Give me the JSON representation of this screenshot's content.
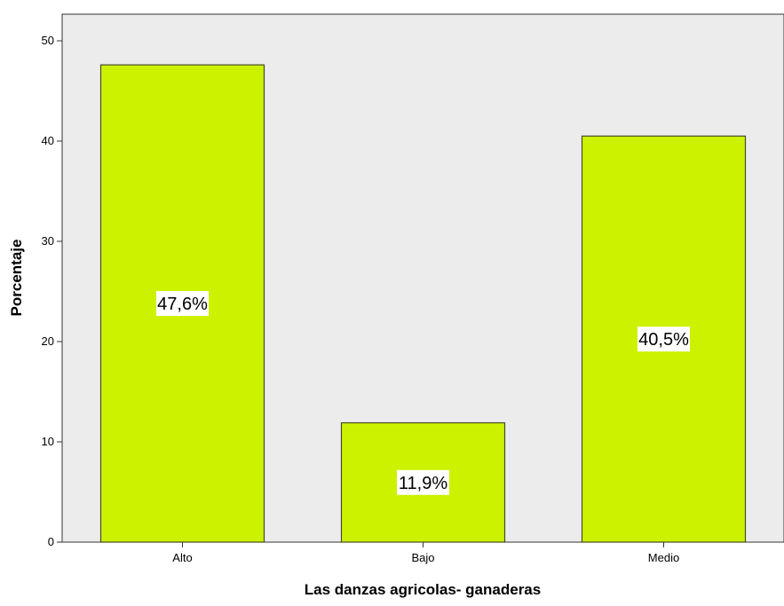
{
  "chart_data": {
    "type": "bar",
    "categories": [
      "Alto",
      "Bajo",
      "Medio"
    ],
    "values": [
      47.6,
      11.9,
      40.5
    ],
    "data_labels": [
      "47,6%",
      "11,9%",
      "40,5%"
    ],
    "title": "",
    "xlabel": "Las danzas agricolas- ganaderas",
    "ylabel": "Porcentaje",
    "ylim": [
      0,
      50
    ],
    "yticks": [
      0,
      10,
      20,
      30,
      40,
      50
    ],
    "ytick_labels": [
      "0",
      "10",
      "20",
      "30",
      "40",
      "50"
    ],
    "grid": false,
    "legend": "none"
  },
  "colors": {
    "plot_background": "#ececec",
    "bar_fill": "#ccf200",
    "bar_stroke": "#4a4a2a",
    "axis": "#333333",
    "label_box": "#ffffff",
    "text": "#000000"
  }
}
